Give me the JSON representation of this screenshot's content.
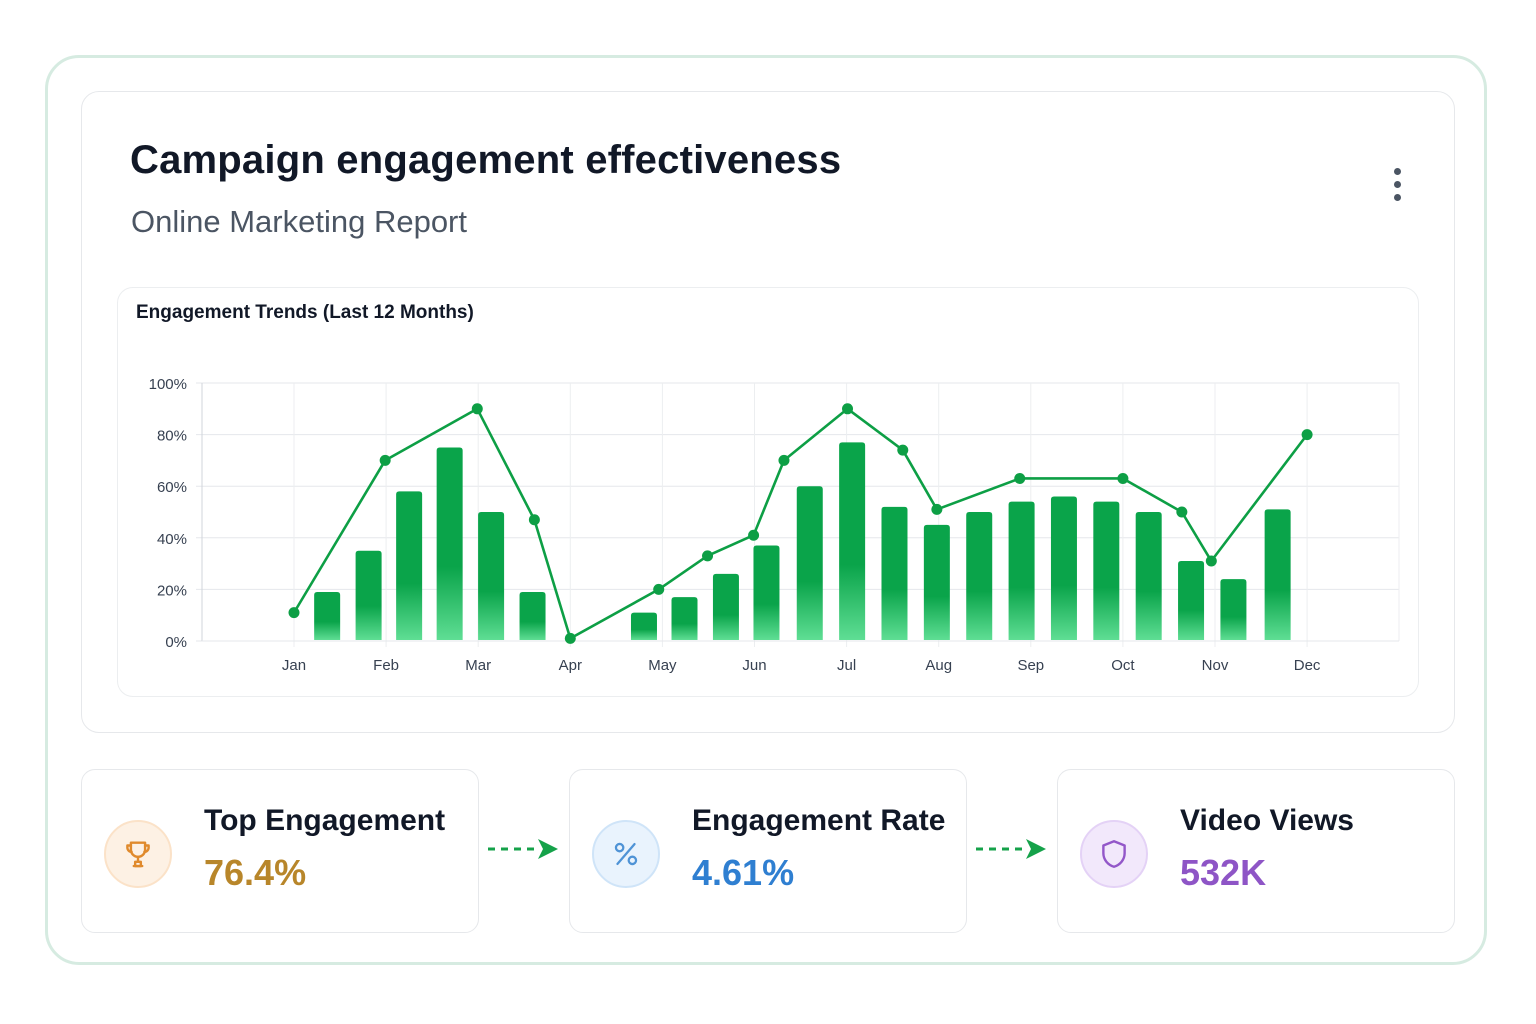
{
  "header": {
    "title": "Campaign engagement effectiveness",
    "subtitle": "Online Marketing Report",
    "menu_icon": "more-vertical-icon"
  },
  "chart_data": {
    "type": "bar",
    "title": "Engagement Trends (Last 12 Months)",
    "xlabel": "",
    "ylabel": "",
    "ylim": [
      0,
      100
    ],
    "y_ticks": [
      "0%",
      "20%",
      "40%",
      "60%",
      "80%",
      "100%"
    ],
    "y_tick_values": [
      0,
      20,
      40,
      60,
      80,
      100
    ],
    "x_ticks": [
      "Jan",
      "Feb",
      "Mar",
      "Apr",
      "May",
      "Jun",
      "Jul",
      "Aug",
      "Sep",
      "Oct",
      "Nov",
      "Dec"
    ],
    "grid": true,
    "bar_color": "#0aa44a",
    "bar_color_light": "#5fde94",
    "line_color": "#0d9f45",
    "bars": [
      {
        "x": 1.36,
        "value": 19
      },
      {
        "x": 1.81,
        "value": 35
      },
      {
        "x": 2.25,
        "value": 58
      },
      {
        "x": 2.69,
        "value": 75
      },
      {
        "x": 3.14,
        "value": 50
      },
      {
        "x": 3.59,
        "value": 19
      },
      {
        "x": 4.8,
        "value": 11
      },
      {
        "x": 5.24,
        "value": 17
      },
      {
        "x": 5.69,
        "value": 26
      },
      {
        "x": 6.13,
        "value": 37
      },
      {
        "x": 6.6,
        "value": 60
      },
      {
        "x": 7.06,
        "value": 77
      },
      {
        "x": 7.52,
        "value": 52
      },
      {
        "x": 7.98,
        "value": 45
      },
      {
        "x": 8.44,
        "value": 50
      },
      {
        "x": 8.9,
        "value": 54
      },
      {
        "x": 9.36,
        "value": 56
      },
      {
        "x": 9.82,
        "value": 54
      },
      {
        "x": 10.28,
        "value": 50
      },
      {
        "x": 10.74,
        "value": 31
      },
      {
        "x": 11.2,
        "value": 24
      },
      {
        "x": 11.68,
        "value": 51
      }
    ],
    "line": [
      {
        "x": 1.0,
        "value": 11
      },
      {
        "x": 1.99,
        "value": 70
      },
      {
        "x": 2.99,
        "value": 90
      },
      {
        "x": 3.61,
        "value": 47
      },
      {
        "x": 4.0,
        "value": 1
      },
      {
        "x": 4.96,
        "value": 20
      },
      {
        "x": 5.49,
        "value": 33
      },
      {
        "x": 5.99,
        "value": 41
      },
      {
        "x": 6.32,
        "value": 70
      },
      {
        "x": 7.01,
        "value": 90
      },
      {
        "x": 7.61,
        "value": 74
      },
      {
        "x": 7.98,
        "value": 51
      },
      {
        "x": 8.88,
        "value": 63
      },
      {
        "x": 10.0,
        "value": 63
      },
      {
        "x": 10.64,
        "value": 50
      },
      {
        "x": 10.96,
        "value": 31
      },
      {
        "x": 12.0,
        "value": 80
      }
    ]
  },
  "stats": [
    {
      "label": "Top Engagement",
      "value": "76.4%",
      "icon": "trophy-icon",
      "color": "#b8862a",
      "icon_color": "#e08a2c",
      "icon_bg": "#fdf1e4",
      "icon_border": "#fbe2c8"
    },
    {
      "label": "Engagement Rate",
      "value": "4.61%",
      "icon": "percent-icon",
      "color": "#2f7fd1",
      "icon_color": "#4f93d6",
      "icon_bg": "#e9f3fd",
      "icon_border": "#cfe4f8"
    },
    {
      "label": "Video Views",
      "value": "532K",
      "icon": "shield-icon",
      "color": "#8e55c6",
      "icon_color": "#9357c9",
      "icon_bg": "#f2e8fb",
      "icon_border": "#e4d2f6"
    }
  ],
  "arrow_color": "#15a24a"
}
